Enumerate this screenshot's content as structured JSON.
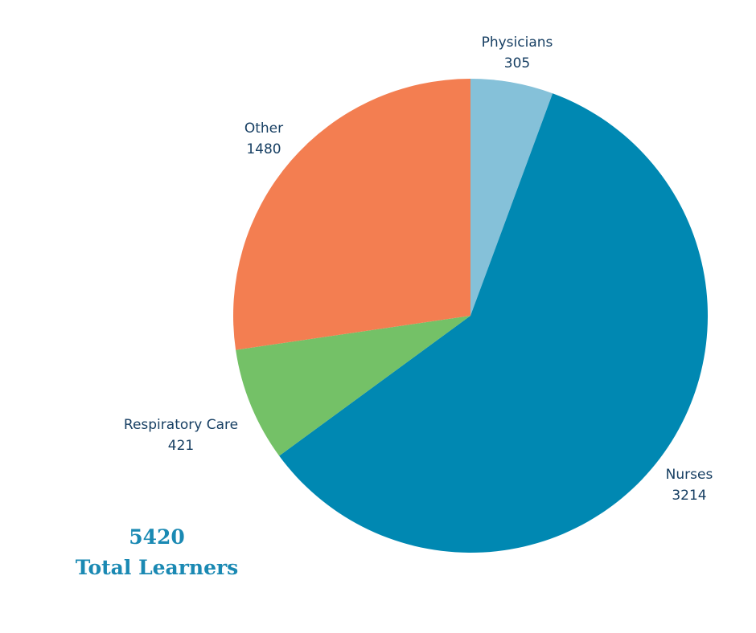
{
  "chart_data": {
    "type": "pie",
    "start_angle": "top, clockwise",
    "slices": [
      {
        "label": "Physicians",
        "value": 305,
        "color": "#85c1d9"
      },
      {
        "label": "Nurses",
        "value": 3214,
        "color": "#0088b2"
      },
      {
        "label": "Respiratory Care",
        "value": 421,
        "color": "#74c167"
      },
      {
        "label": "Other",
        "value": 1480,
        "color": "#f37e51"
      }
    ],
    "total": {
      "value": "5420",
      "label": "Total Learners"
    }
  }
}
